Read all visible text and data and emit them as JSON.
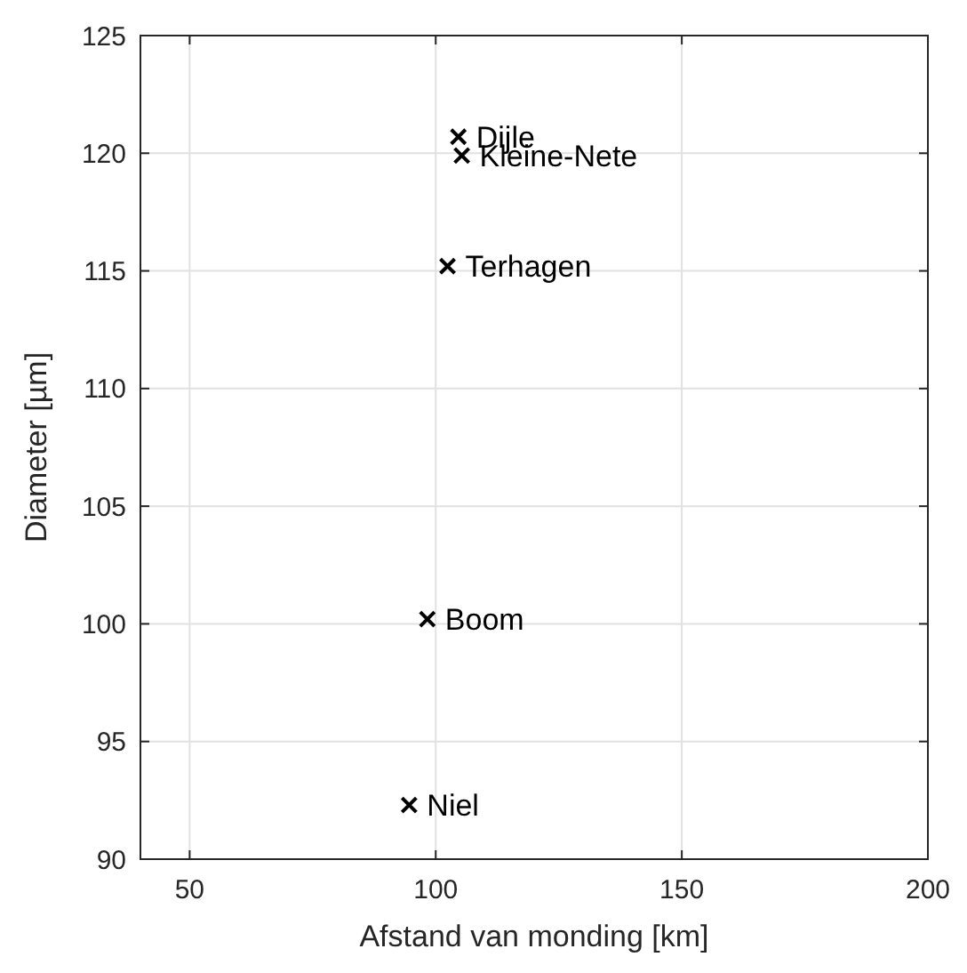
{
  "chart_data": {
    "type": "scatter",
    "xlabel": "Afstand van monding [km]",
    "ylabel": "Diameter [µm]",
    "x": [
      104.6,
      105.3,
      102.4,
      98.3,
      94.6
    ],
    "values": [
      120.7,
      119.9,
      115.2,
      100.2,
      92.3
    ],
    "color": "#000000",
    "marker": "cross",
    "xlim": [
      40,
      200
    ],
    "xticks": [
      50,
      100,
      150,
      200
    ],
    "ylim": [
      90,
      125
    ],
    "yticks": [
      90,
      95,
      100,
      105,
      110,
      115,
      120,
      125
    ],
    "grid": true,
    "annotations": [
      {
        "text": "Dijle",
        "x": 104.6,
        "y": 120.7
      },
      {
        "text": "Kleine-Nete",
        "x": 105.3,
        "y": 119.9
      },
      {
        "text": "Terhagen",
        "x": 102.4,
        "y": 115.2
      },
      {
        "text": "Boom",
        "x": 98.3,
        "y": 100.2
      },
      {
        "text": "Niel",
        "x": 94.6,
        "y": 92.3
      }
    ]
  }
}
